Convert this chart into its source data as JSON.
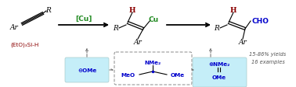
{
  "bg_color": "#ffffff",
  "figure_width": 3.78,
  "figure_height": 1.13,
  "dpi": 100,
  "silane_label": "(EtO)₃Si-H",
  "silane_color": "#8B0000",
  "cu_catalyst_label": "[Cu]",
  "cu_color": "#228B22",
  "vinyl_cu_H_color": "#8B0000",
  "vinyl_cu_Cu_color": "#228B22",
  "product_H_color": "#8B0000",
  "product_CHO_color": "#0000cc",
  "yield_label": "15-86% yields",
  "examples_label": "16 examples",
  "yield_color": "#555555",
  "box_blue_bg": "#c5eef8",
  "box_text_color": "#0000cc",
  "center_box_text_color": "#0000cc",
  "center_box_edge": "#888888"
}
